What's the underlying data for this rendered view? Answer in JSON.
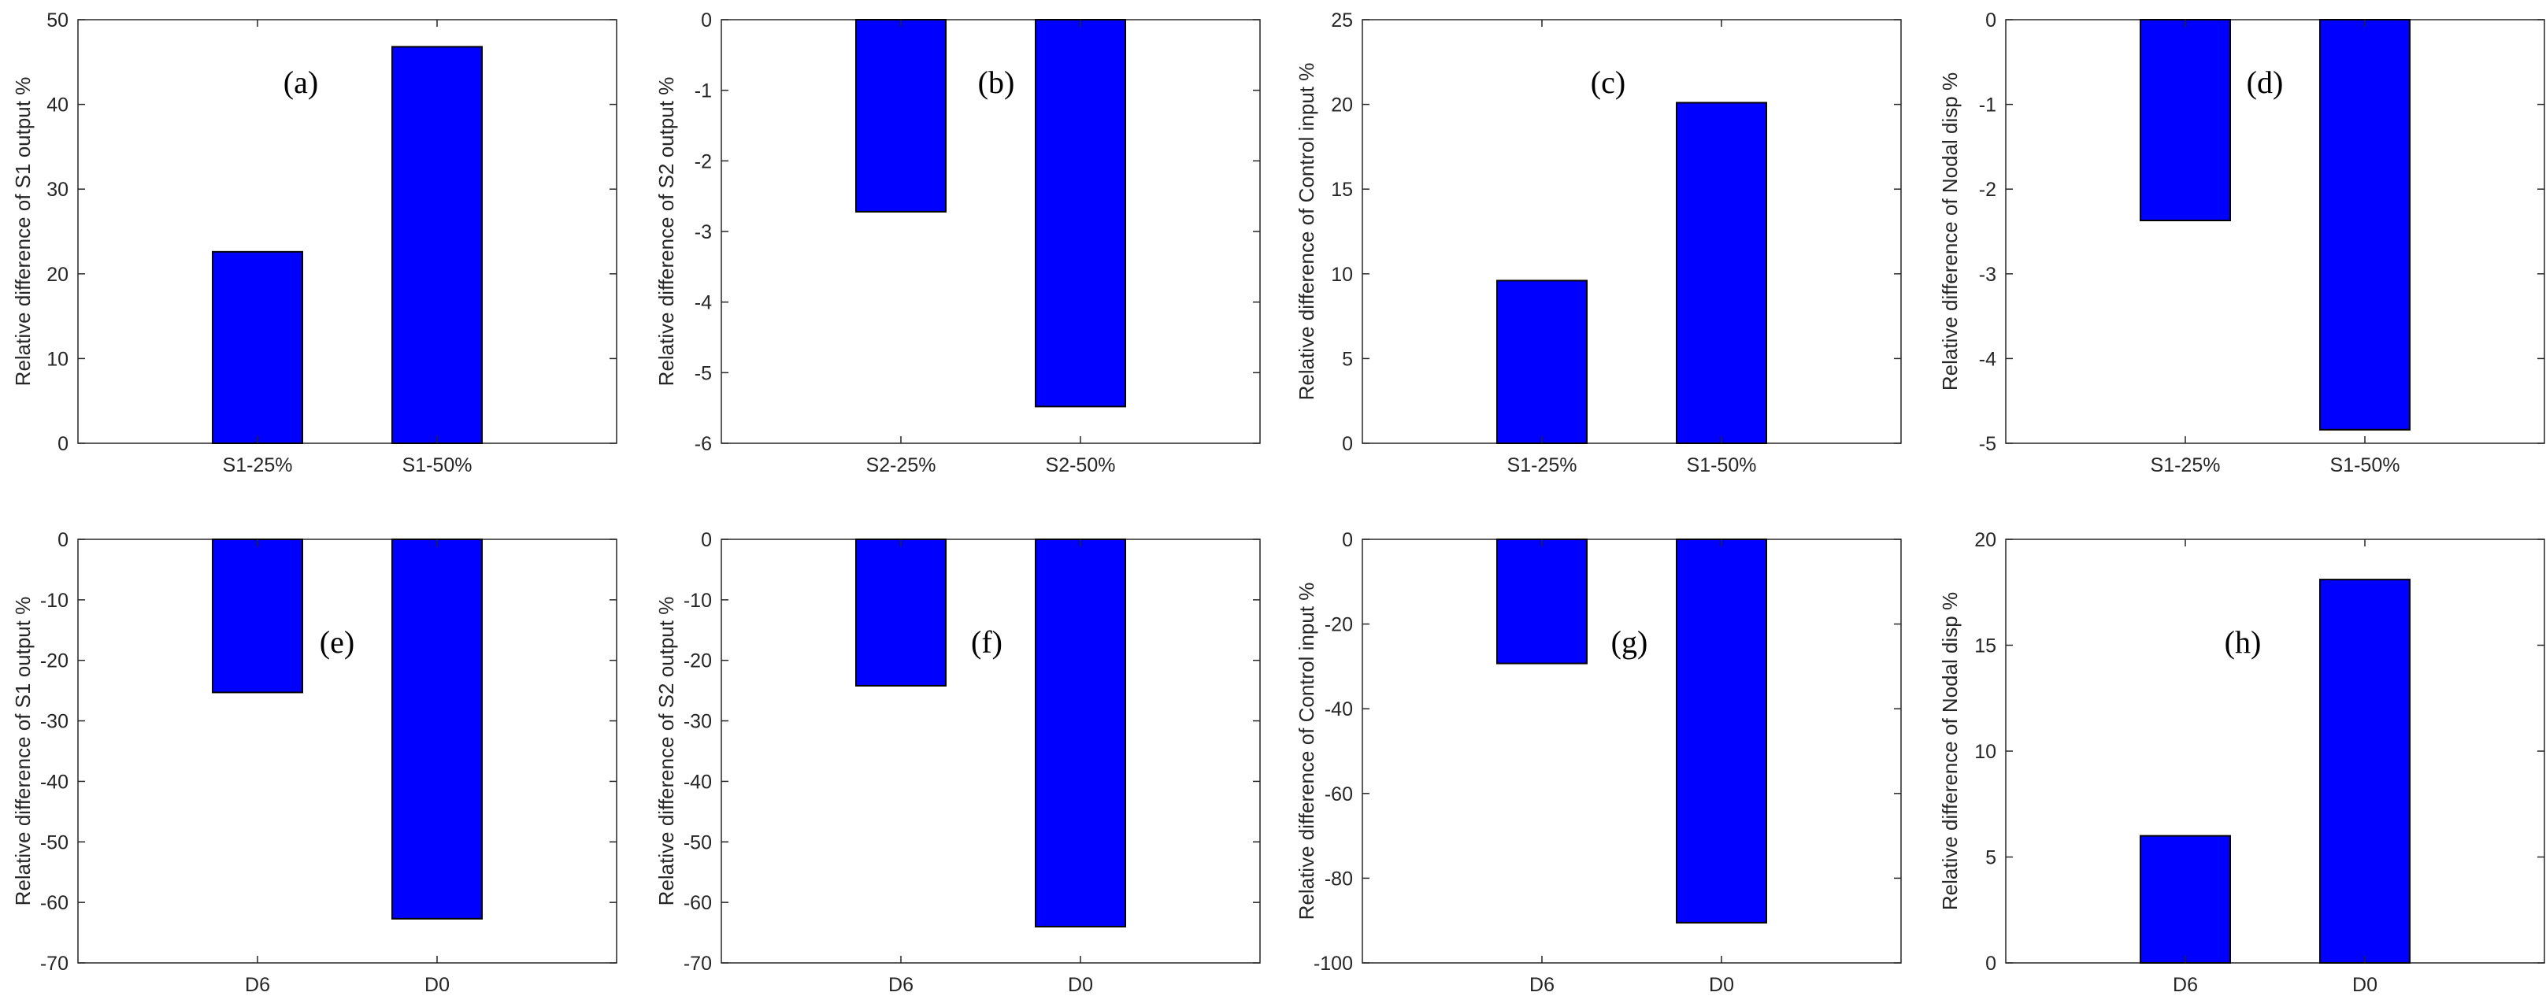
{
  "colors": {
    "bar_fill": "#0000FF",
    "bar_edge": "#000000",
    "axis": "#262626",
    "background": "#FFFFFF"
  },
  "chart_data": [
    {
      "type": "bar",
      "panel": "(a)",
      "categories": [
        "S1-25%",
        "S1-50%"
      ],
      "values": [
        22.6,
        46.8
      ],
      "ylabel": "Relative difference of S1 output %",
      "xlabel": "",
      "title": "",
      "ylim": [
        0,
        50
      ],
      "yticks": [
        "0",
        "10",
        "20",
        "30",
        "40",
        "50"
      ],
      "ytick_values": [
        0,
        10,
        20,
        30,
        40,
        50
      ]
    },
    {
      "type": "bar",
      "panel": "(b)",
      "categories": [
        "S2-25%",
        "S2-50%"
      ],
      "values": [
        -2.72,
        -5.48
      ],
      "ylabel": "Relative difference of S2 output %",
      "xlabel": "",
      "title": "",
      "ylim": [
        -6,
        0
      ],
      "yticks": [
        "-6",
        "-5",
        "-4",
        "-3",
        "-2",
        "-1",
        "0"
      ],
      "ytick_values": [
        -6,
        -5,
        -4,
        -3,
        -2,
        -1,
        0
      ]
    },
    {
      "type": "bar",
      "panel": "(c)",
      "categories": [
        "S1-25%",
        "S1-50%"
      ],
      "values": [
        9.6,
        20.1
      ],
      "ylabel": "Relative difference of Control input %",
      "xlabel": "",
      "title": "",
      "ylim": [
        0,
        25
      ],
      "yticks": [
        "0",
        "5",
        "10",
        "15",
        "20",
        "25"
      ],
      "ytick_values": [
        0,
        5,
        10,
        15,
        20,
        25
      ]
    },
    {
      "type": "bar",
      "panel": "(d)",
      "categories": [
        "S1-25%",
        "S1-50%"
      ],
      "values": [
        -2.37,
        -4.84
      ],
      "ylabel": "Relative difference of Nodal disp %",
      "xlabel": "",
      "title": "",
      "ylim": [
        -5,
        0
      ],
      "yticks": [
        "-5",
        "-4",
        "-3",
        "-2",
        "-1",
        "0"
      ],
      "ytick_values": [
        -5,
        -4,
        -3,
        -2,
        -1,
        0
      ]
    },
    {
      "type": "bar",
      "panel": "(e)",
      "categories": [
        "D6",
        "D0"
      ],
      "values": [
        -25.3,
        -62.7
      ],
      "ylabel": "Relative difference of S1 output %",
      "xlabel": "",
      "title": "",
      "ylim": [
        -70,
        0
      ],
      "yticks": [
        "-70",
        "-60",
        "-50",
        "-40",
        "-30",
        "-20",
        "-10",
        "0"
      ],
      "ytick_values": [
        -70,
        -60,
        -50,
        -40,
        -30,
        -20,
        -10,
        0
      ]
    },
    {
      "type": "bar",
      "panel": "(f)",
      "categories": [
        "D6",
        "D0"
      ],
      "values": [
        -24.2,
        -64.0
      ],
      "ylabel": "Relative difference of S2 output %",
      "xlabel": "",
      "title": "",
      "ylim": [
        -70,
        0
      ],
      "yticks": [
        "-70",
        "-60",
        "-50",
        "-40",
        "-30",
        "-20",
        "-10",
        "0"
      ],
      "ytick_values": [
        -70,
        -60,
        -50,
        -40,
        -30,
        -20,
        -10,
        0
      ]
    },
    {
      "type": "bar",
      "panel": "(g)",
      "categories": [
        "D6",
        "D0"
      ],
      "values": [
        -29.3,
        -90.5
      ],
      "ylabel": "Relative difference of Control input %",
      "xlabel": "",
      "title": "",
      "ylim": [
        -100,
        0
      ],
      "yticks": [
        "-100",
        "-80",
        "-60",
        "-40",
        "-20",
        "0"
      ],
      "ytick_values": [
        -100,
        -80,
        -60,
        -40,
        -20,
        0
      ]
    },
    {
      "type": "bar",
      "panel": "(h)",
      "categories": [
        "D6",
        "D0"
      ],
      "values": [
        6.0,
        18.1
      ],
      "ylabel": "Relative difference of Nodal disp %",
      "xlabel": "",
      "title": "",
      "ylim": [
        0,
        20
      ],
      "yticks": [
        "0",
        "5",
        "10",
        "15",
        "20"
      ],
      "ytick_values": [
        0,
        5,
        10,
        15,
        20
      ]
    }
  ]
}
